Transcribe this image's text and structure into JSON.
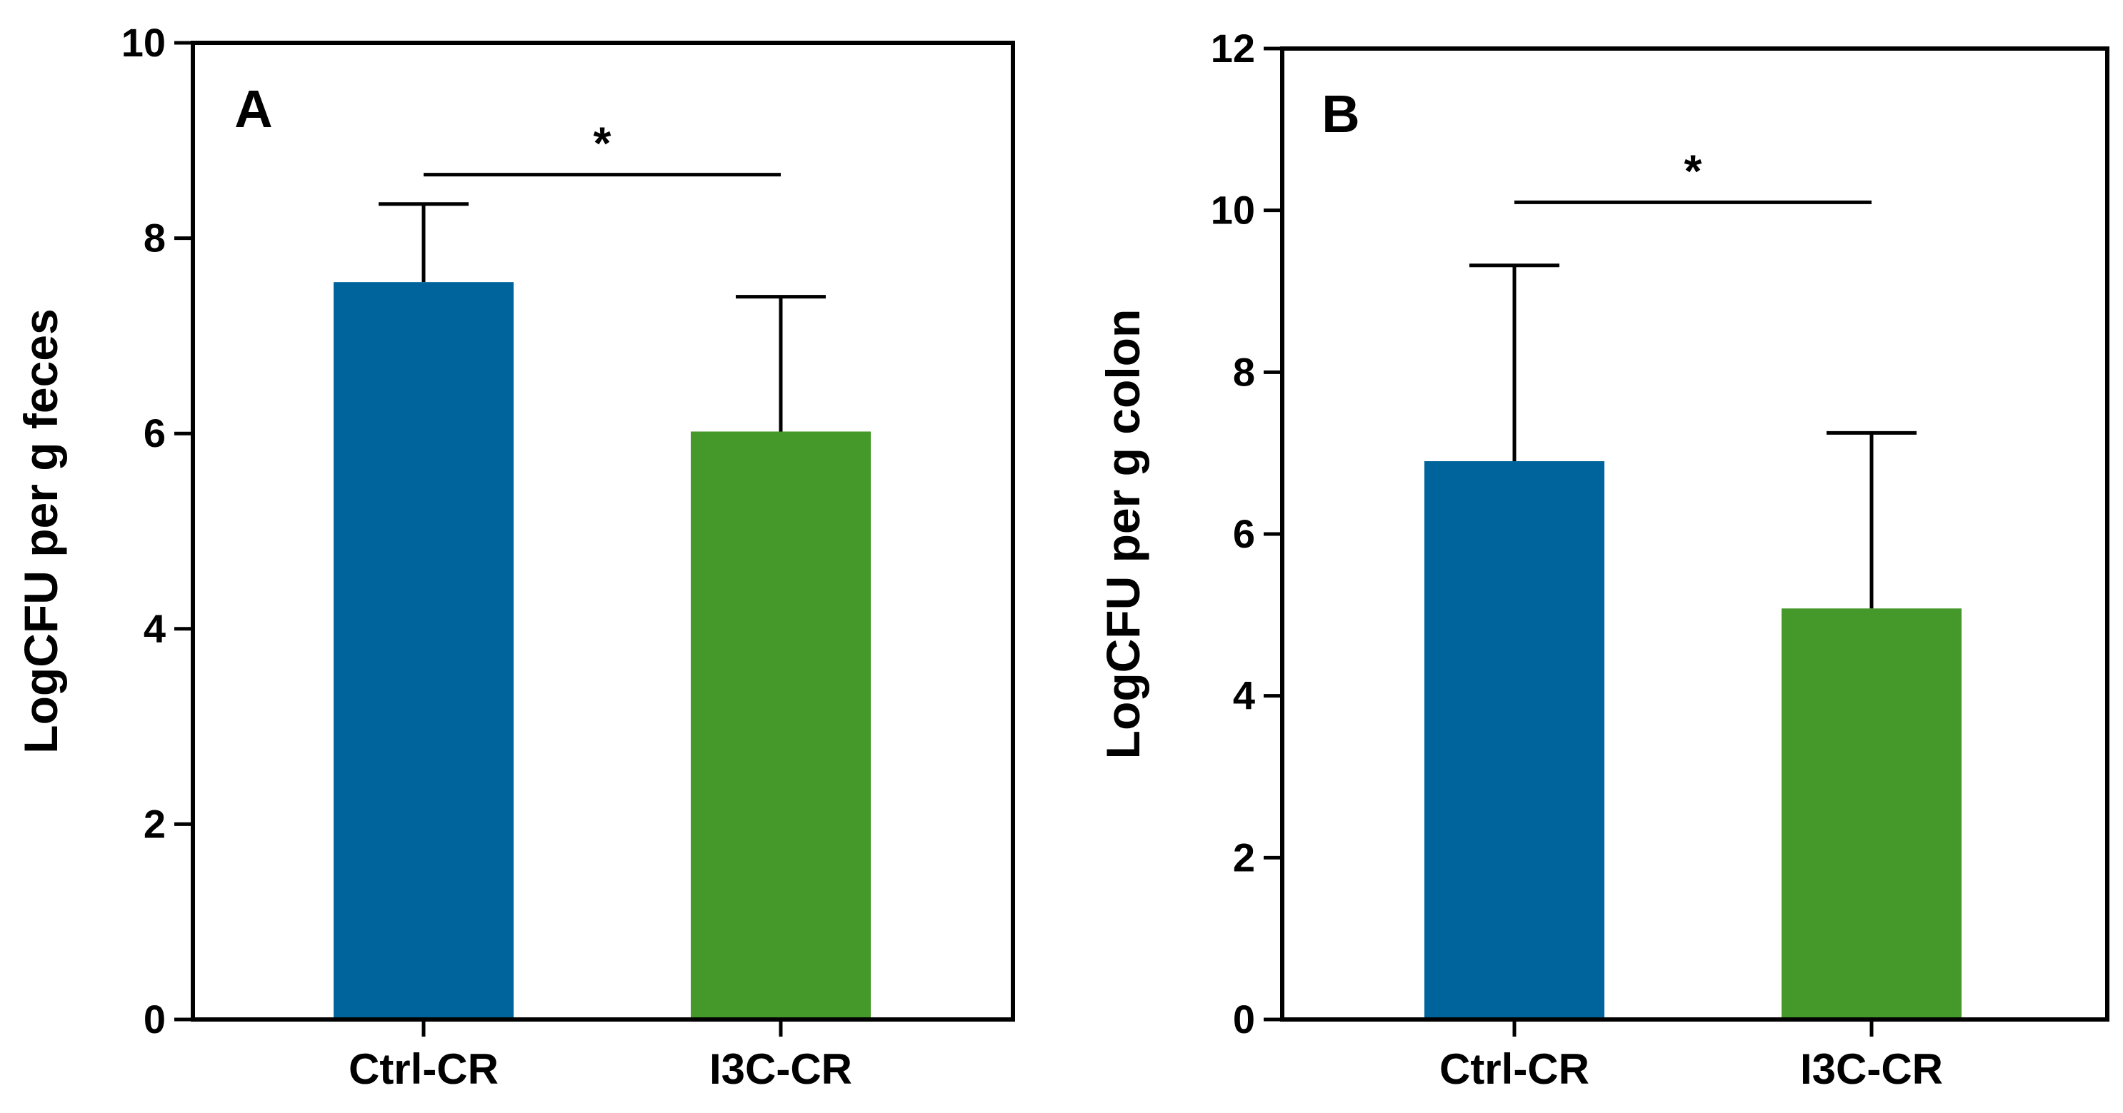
{
  "chart_data": [
    {
      "type": "bar",
      "panel_label": "A",
      "categories": [
        "Ctrl-CR",
        "I3C-CR"
      ],
      "values": [
        7.55,
        6.02
      ],
      "errors": [
        0.8,
        1.38
      ],
      "colors": [
        "#00649c",
        "#45992a"
      ],
      "ylabel": "LogCFU per g feces",
      "xlabel": "",
      "ylim": [
        0,
        10
      ],
      "yticks": [
        0,
        2,
        4,
        6,
        8,
        10
      ],
      "yticklabels": [
        "0",
        "2",
        "4",
        "6",
        "8",
        "10"
      ],
      "significance": {
        "pair": [
          "Ctrl-CR",
          "I3C-CR"
        ],
        "label": "*",
        "level": 8.65
      }
    },
    {
      "type": "bar",
      "panel_label": "B",
      "categories": [
        "Ctrl-CR",
        "I3C-CR"
      ],
      "values": [
        6.9,
        5.08
      ],
      "errors": [
        2.42,
        2.17
      ],
      "colors": [
        "#00649c",
        "#45992a"
      ],
      "ylabel": "LogCFU per g colon",
      "xlabel": "",
      "ylim": [
        0,
        12
      ],
      "yticks": [
        0,
        2,
        4,
        6,
        8,
        10,
        12
      ],
      "yticklabels": [
        "0",
        "2",
        "4",
        "6",
        "8",
        "10",
        "12"
      ],
      "significance": {
        "pair": [
          "Ctrl-CR",
          "I3C-CR"
        ],
        "label": "*",
        "level": 10.1
      }
    }
  ]
}
